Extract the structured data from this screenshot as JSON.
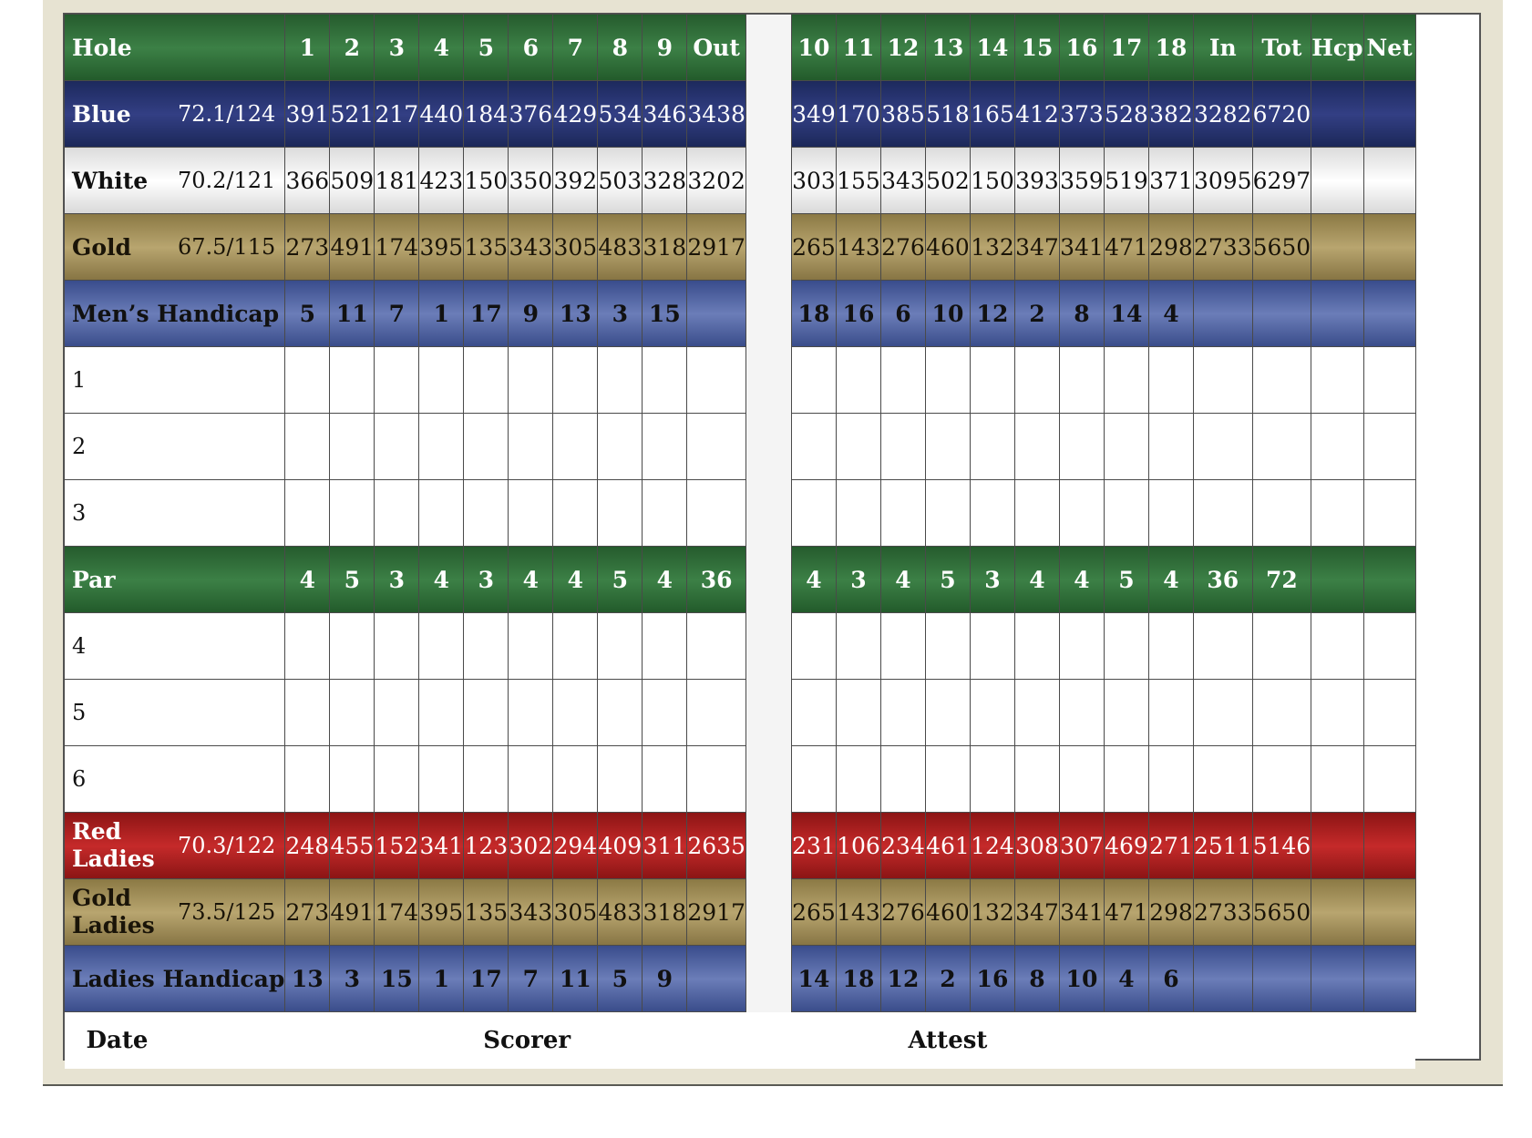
{
  "header": {
    "hole_label": "Hole",
    "front": [
      "1",
      "2",
      "3",
      "4",
      "5",
      "6",
      "7",
      "8",
      "9",
      "Out"
    ],
    "back": [
      "10",
      "11",
      "12",
      "13",
      "14",
      "15",
      "16",
      "17",
      "18",
      "In",
      "Tot",
      "Hcp",
      "Net"
    ]
  },
  "tees": {
    "blue": {
      "name": "Blue",
      "rating": "72.1/124",
      "front": [
        "391",
        "521",
        "217",
        "440",
        "184",
        "376",
        "429",
        "534",
        "346",
        "3438"
      ],
      "back": [
        "349",
        "170",
        "385",
        "518",
        "165",
        "412",
        "373",
        "528",
        "382",
        "3282",
        "6720",
        "",
        ""
      ]
    },
    "white": {
      "name": "White",
      "rating": "70.2/121",
      "front": [
        "366",
        "509",
        "181",
        "423",
        "150",
        "350",
        "392",
        "503",
        "328",
        "3202"
      ],
      "back": [
        "303",
        "155",
        "343",
        "502",
        "150",
        "393",
        "359",
        "519",
        "371",
        "3095",
        "6297",
        "",
        ""
      ]
    },
    "gold": {
      "name": "Gold",
      "rating": "67.5/115",
      "front": [
        "273",
        "491",
        "174",
        "395",
        "135",
        "343",
        "305",
        "483",
        "318",
        "2917"
      ],
      "back": [
        "265",
        "143",
        "276",
        "460",
        "132",
        "347",
        "341",
        "471",
        "298",
        "2733",
        "5650",
        "",
        ""
      ]
    }
  },
  "mens_handicap": {
    "name": "Men’s Handicap",
    "front": [
      "5",
      "11",
      "7",
      "1",
      "17",
      "9",
      "13",
      "3",
      "15",
      ""
    ],
    "back": [
      "18",
      "16",
      "6",
      "10",
      "12",
      "2",
      "8",
      "14",
      "4",
      "",
      "",
      "",
      ""
    ]
  },
  "player_rows_top": [
    "1",
    "2",
    "3"
  ],
  "par": {
    "name": "Par",
    "front": [
      "4",
      "5",
      "3",
      "4",
      "3",
      "4",
      "4",
      "5",
      "4",
      "36"
    ],
    "back": [
      "4",
      "3",
      "4",
      "5",
      "3",
      "4",
      "4",
      "5",
      "4",
      "36",
      "72",
      "",
      ""
    ]
  },
  "player_rows_bottom": [
    "4",
    "5",
    "6"
  ],
  "red_ladies": {
    "name_line1": "Red",
    "name_line2": "Ladies",
    "rating": "70.3/122",
    "front": [
      "248",
      "455",
      "152",
      "341",
      "123",
      "302",
      "294",
      "409",
      "311",
      "2635"
    ],
    "back": [
      "231",
      "106",
      "234",
      "461",
      "124",
      "308",
      "307",
      "469",
      "271",
      "2511",
      "5146",
      "",
      ""
    ]
  },
  "gold_ladies": {
    "name_line1": "Gold",
    "name_line2": "Ladies",
    "rating": "73.5/125",
    "front": [
      "273",
      "491",
      "174",
      "395",
      "135",
      "343",
      "305",
      "483",
      "318",
      "2917"
    ],
    "back": [
      "265",
      "143",
      "276",
      "460",
      "132",
      "347",
      "341",
      "471",
      "298",
      "2733",
      "5650",
      "",
      ""
    ]
  },
  "ladies_handicap": {
    "name": "Ladies Handicap",
    "front": [
      "13",
      "3",
      "15",
      "1",
      "17",
      "7",
      "11",
      "5",
      "9",
      ""
    ],
    "back": [
      "14",
      "18",
      "12",
      "2",
      "16",
      "8",
      "10",
      "4",
      "6",
      "",
      "",
      "",
      ""
    ]
  },
  "footer": {
    "date": "Date",
    "scorer": "Scorer",
    "attest": "Attest"
  },
  "colors": {
    "green": "#2f6e38",
    "blue": "#27336f",
    "gold": "#a8955e",
    "handicap_blue": "#5567a3",
    "red": "#b02020",
    "white": "#ffffff"
  }
}
